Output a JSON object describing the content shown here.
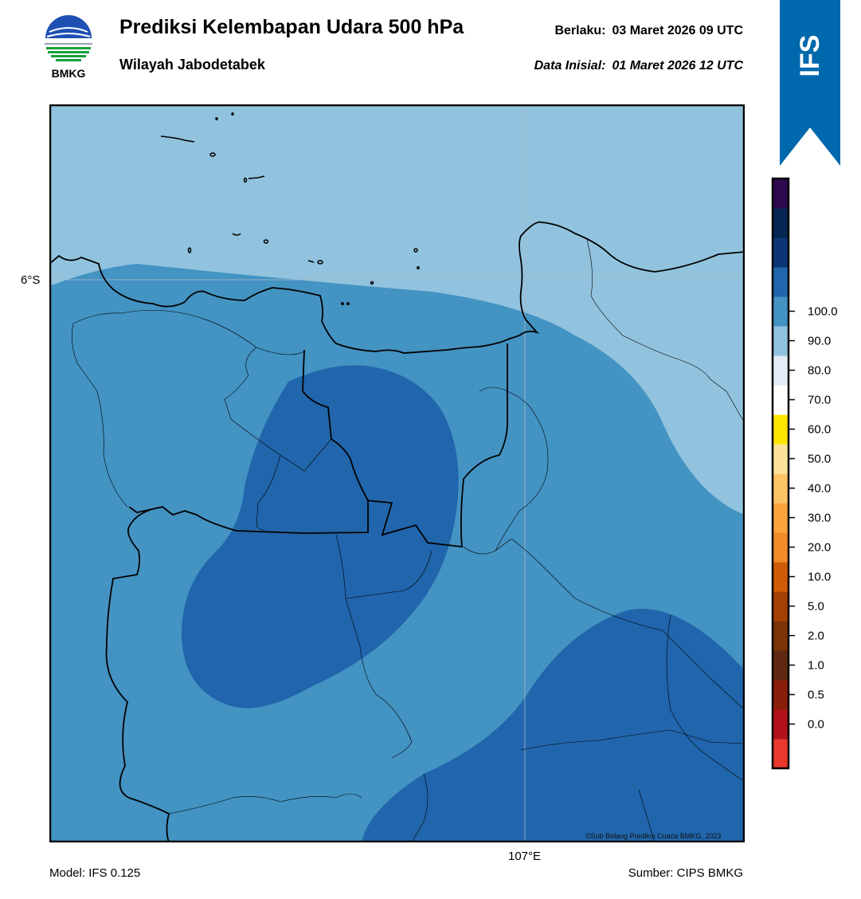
{
  "header": {
    "title": "Prediksi Kelembapan Udara 500 hPa",
    "subtitle": "Wilayah Jabodetabek",
    "valid_label": "Berlaku:",
    "valid_value": "03 Maret 2026 09 UTC",
    "init_label": "Data Inisial:",
    "init_value": "01 Maret 2026 12 UTC"
  },
  "logo": {
    "text": "BMKG",
    "icon": "bmkg-logo-icon"
  },
  "banner": {
    "text": "IFS",
    "color": "#0068ac"
  },
  "map": {
    "lat_label": "6°S",
    "lon_label": "107°E",
    "copyright": "©Sub Bidang Prediksi Cuaca BMKG, 2023",
    "fill_colors": {
      "60-70": "#91c3de",
      "70-80": "#4393c3",
      "80-90": "#2166ac"
    }
  },
  "footer": {
    "model": "Model: IFS 0.125",
    "source": "Sumber: CIPS BMKG"
  },
  "colorbar": {
    "colors": [
      "#e8392c",
      "#b2121a",
      "#8a1e0a",
      "#5e2910",
      "#7a3408",
      "#a64106",
      "#d15c08",
      "#f28c28",
      "#fca43c",
      "#fdc466",
      "#fde29c",
      "#ffe600",
      "#ffffff",
      "#e2ecf6",
      "#91c3de",
      "#4393c3",
      "#2166ac",
      "#0b3574",
      "#052552",
      "#2d0a4e"
    ],
    "ticks": [
      "0.0",
      "0.5",
      "1.0",
      "2.0",
      "5.0",
      "10.0",
      "20.0",
      "30.0",
      "40.0",
      "50.0",
      "60.0",
      "70.0",
      "80.0",
      "90.0",
      "100.0"
    ]
  }
}
